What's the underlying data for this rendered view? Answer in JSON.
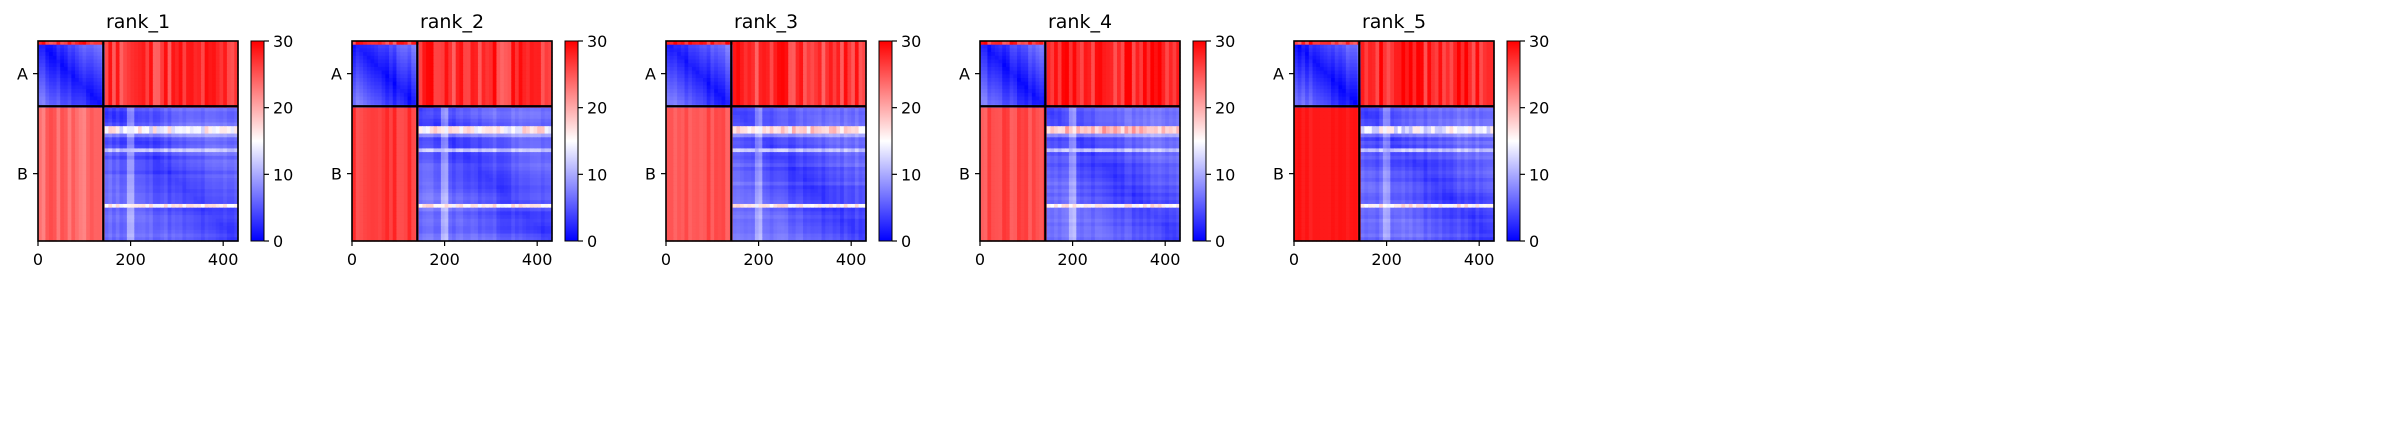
{
  "chart_data": [
    {
      "type": "heatmap",
      "title": "rank_1",
      "chain_labels": [
        "A",
        "B"
      ],
      "chain_lengths": [
        141,
        291
      ],
      "xticks": [
        0,
        200,
        400
      ],
      "xlim": [
        0,
        432
      ],
      "colorbar": {
        "min": 0,
        "max": 30,
        "ticks": [
          0,
          10,
          20,
          30
        ],
        "colors": [
          "#0000ff",
          "#ffffff",
          "#ff0000"
        ]
      },
      "offdiag_level": 27,
      "ab_level": 27,
      "ba_level": 26,
      "ba_stripe": 4,
      "band_level": 18,
      "seed": 11
    },
    {
      "type": "heatmap",
      "title": "rank_2",
      "chain_labels": [
        "A",
        "B"
      ],
      "chain_lengths": [
        141,
        291
      ],
      "xticks": [
        0,
        200,
        400
      ],
      "xlim": [
        0,
        432
      ],
      "colorbar": {
        "min": 0,
        "max": 30,
        "ticks": [
          0,
          10,
          20,
          30
        ],
        "colors": [
          "#0000ff",
          "#ffffff",
          "#ff0000"
        ]
      },
      "ab_level": 27,
      "ba_level": 28,
      "ba_stripe": 3,
      "band_level": 19,
      "seed": 23
    },
    {
      "type": "heatmap",
      "title": "rank_3",
      "chain_labels": [
        "A",
        "B"
      ],
      "chain_lengths": [
        141,
        291
      ],
      "xticks": [
        0,
        200,
        400
      ],
      "xlim": [
        0,
        432
      ],
      "colorbar": {
        "min": 0,
        "max": 30,
        "ticks": [
          0,
          10,
          20,
          30
        ],
        "colors": [
          "#0000ff",
          "#ffffff",
          "#ff0000"
        ]
      },
      "ab_level": 27,
      "ba_level": 27,
      "ba_stripe": 3,
      "band_level": 20,
      "seed": 37
    },
    {
      "type": "heatmap",
      "title": "rank_4",
      "chain_labels": [
        "A",
        "B"
      ],
      "chain_lengths": [
        141,
        291
      ],
      "xticks": [
        0,
        200,
        400
      ],
      "xlim": [
        0,
        432
      ],
      "colorbar": {
        "min": 0,
        "max": 30,
        "ticks": [
          0,
          10,
          20,
          30
        ],
        "colors": [
          "#0000ff",
          "#ffffff",
          "#ff0000"
        ]
      },
      "ab_level": 28,
      "ba_level": 27,
      "ba_stripe": 3,
      "band_level": 22,
      "seed": 41
    },
    {
      "type": "heatmap",
      "title": "rank_5",
      "chain_labels": [
        "A",
        "B"
      ],
      "chain_lengths": [
        141,
        291
      ],
      "xticks": [
        0,
        200,
        400
      ],
      "xlim": [
        0,
        432
      ],
      "colorbar": {
        "min": 0,
        "max": 30,
        "ticks": [
          0,
          10,
          20,
          30
        ],
        "colors": [
          "#0000ff",
          "#ffffff",
          "#ff0000"
        ]
      },
      "ab_level": 28,
      "ba_level": 29,
      "ba_stripe": 1,
      "band_level": 17,
      "seed": 53
    }
  ]
}
